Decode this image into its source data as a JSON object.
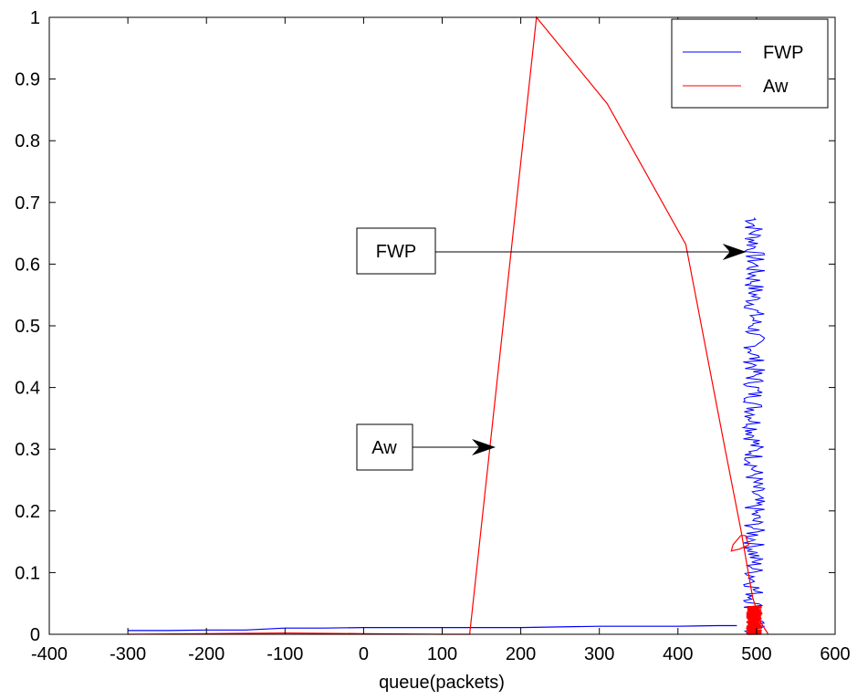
{
  "chart_data": {
    "type": "line",
    "title": "",
    "xlabel": "queue(packets)",
    "ylabel": "",
    "xlim": [
      -400,
      600
    ],
    "ylim": [
      0,
      1
    ],
    "xticks": [
      -400,
      -300,
      -200,
      -100,
      0,
      100,
      200,
      300,
      400,
      500,
      600
    ],
    "yticks": [
      0,
      0.1,
      0.2,
      0.3,
      0.4,
      0.5,
      0.6,
      0.7,
      0.8,
      0.9,
      1
    ],
    "xtick_labels": [
      "-400",
      "-300",
      "-200",
      "-100",
      "0",
      "100",
      "200",
      "300",
      "400",
      "500",
      "600"
    ],
    "ytick_labels": [
      "0",
      "0.1",
      "0.2",
      "0.3",
      "0.4",
      "0.5",
      "0.6",
      "0.7",
      "0.8",
      "0.9",
      "1"
    ],
    "grid": false,
    "legend_position": "top-right",
    "series": [
      {
        "name": "FWP",
        "color": "#0000ff",
        "x": [
          -300,
          -250,
          -200,
          -150,
          -100,
          -50,
          0,
          50,
          100,
          150,
          200,
          250,
          300,
          350,
          400,
          450,
          475
        ],
        "y": [
          0.006,
          0.006,
          0.007,
          0.007,
          0.01,
          0.01,
          0.011,
          0.011,
          0.011,
          0.011,
          0.011,
          0.012,
          0.013,
          0.013,
          0.013,
          0.014,
          0.014
        ],
        "cluster": {
          "x_center": 497,
          "x_jitter": 14,
          "y_min": 0.0,
          "y_max": 0.675
        }
      },
      {
        "name": "Aw",
        "color": "#ff0000",
        "x": [
          -300,
          -200,
          -100,
          0,
          100,
          135,
          220,
          310,
          410,
          460,
          480,
          495,
          505,
          515
        ],
        "y": [
          0.0,
          0.001,
          0.002,
          0.001,
          0.0,
          0.0,
          1.0,
          0.86,
          0.632,
          0.3,
          0.17,
          0.06,
          0.02,
          0.0
        ],
        "loop": {
          "x": [
            480,
            470,
            468,
            478,
            490,
            486,
            480
          ],
          "y": [
            0.16,
            0.145,
            0.135,
            0.138,
            0.145,
            0.16,
            0.16
          ]
        },
        "cluster": {
          "x_center": 497,
          "x_jitter": 10,
          "y_min": 0.0,
          "y_max": 0.045
        }
      }
    ],
    "annotations": [
      {
        "text": "FWP",
        "arrow_to": [
          487,
          0.62
        ]
      },
      {
        "text": "Aw",
        "arrow_to": [
          168,
          0.3
        ]
      }
    ]
  }
}
